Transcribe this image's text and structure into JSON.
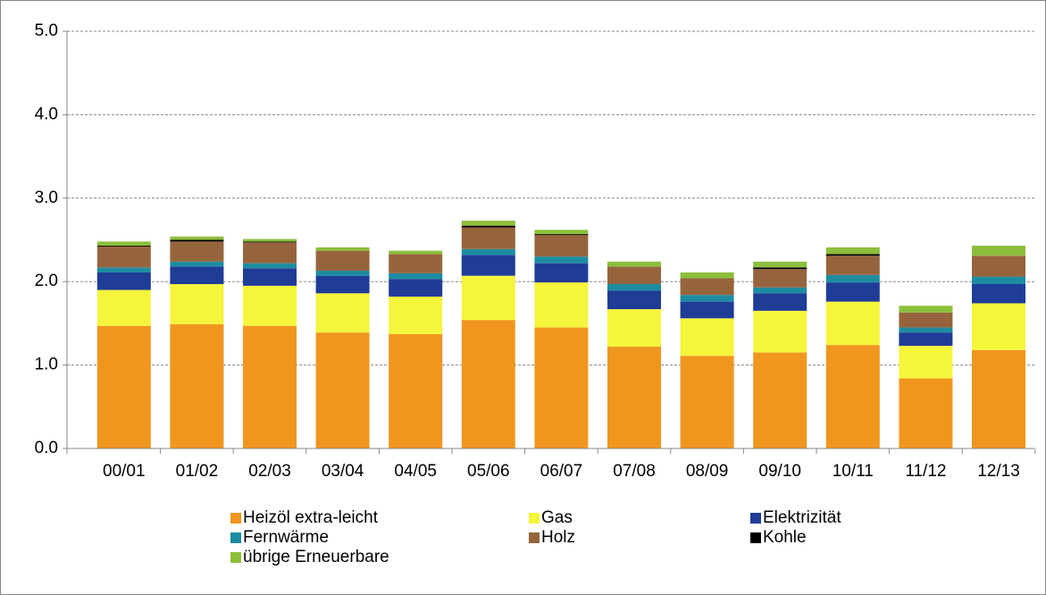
{
  "chart_data": {
    "type": "stacked_bar",
    "categories": [
      "00/01",
      "01/02",
      "02/03",
      "03/04",
      "04/05",
      "05/06",
      "06/07",
      "07/08",
      "08/09",
      "09/10",
      "10/11",
      "11/12",
      "12/13"
    ],
    "series": [
      {
        "name": "Heizöl extra-leicht",
        "color": "#f0961e",
        "values": [
          1.47,
          1.49,
          1.47,
          1.39,
          1.37,
          1.54,
          1.45,
          1.22,
          1.11,
          1.15,
          1.24,
          0.84,
          1.18
        ]
      },
      {
        "name": "Gas",
        "color": "#f5f53c",
        "values": [
          0.43,
          0.48,
          0.48,
          0.47,
          0.45,
          0.53,
          0.54,
          0.45,
          0.45,
          0.5,
          0.52,
          0.39,
          0.56
        ]
      },
      {
        "name": "Elektrizität",
        "color": "#1f3c96",
        "values": [
          0.21,
          0.21,
          0.21,
          0.21,
          0.21,
          0.25,
          0.23,
          0.22,
          0.2,
          0.21,
          0.23,
          0.16,
          0.23
        ]
      },
      {
        "name": "Fernwärme",
        "color": "#1e8ca0",
        "values": [
          0.06,
          0.06,
          0.06,
          0.06,
          0.07,
          0.07,
          0.08,
          0.08,
          0.08,
          0.07,
          0.09,
          0.06,
          0.09
        ]
      },
      {
        "name": "Holz",
        "color": "#96643c",
        "values": [
          0.25,
          0.24,
          0.25,
          0.24,
          0.23,
          0.26,
          0.26,
          0.21,
          0.2,
          0.22,
          0.23,
          0.18,
          0.25
        ]
      },
      {
        "name": "Kohle",
        "color": "#000000",
        "values": [
          0.01,
          0.02,
          0.01,
          0,
          0,
          0.02,
          0.01,
          0,
          0,
          0.02,
          0.02,
          0,
          0
        ]
      },
      {
        "name": "übrige Erneuerbare",
        "color": "#8cbe3c",
        "values": [
          0.05,
          0.04,
          0.03,
          0.04,
          0.04,
          0.06,
          0.05,
          0.06,
          0.07,
          0.07,
          0.08,
          0.08,
          0.12
        ]
      }
    ],
    "ylim": [
      0,
      5
    ],
    "yticks": [
      {
        "value": 0,
        "label": "0.0"
      },
      {
        "value": 1,
        "label": "1.0"
      },
      {
        "value": 2,
        "label": "2.0"
      },
      {
        "value": 3,
        "label": "3.0"
      },
      {
        "value": 4,
        "label": "4.0"
      },
      {
        "value": 5,
        "label": "5.0"
      }
    ],
    "grid": true
  }
}
